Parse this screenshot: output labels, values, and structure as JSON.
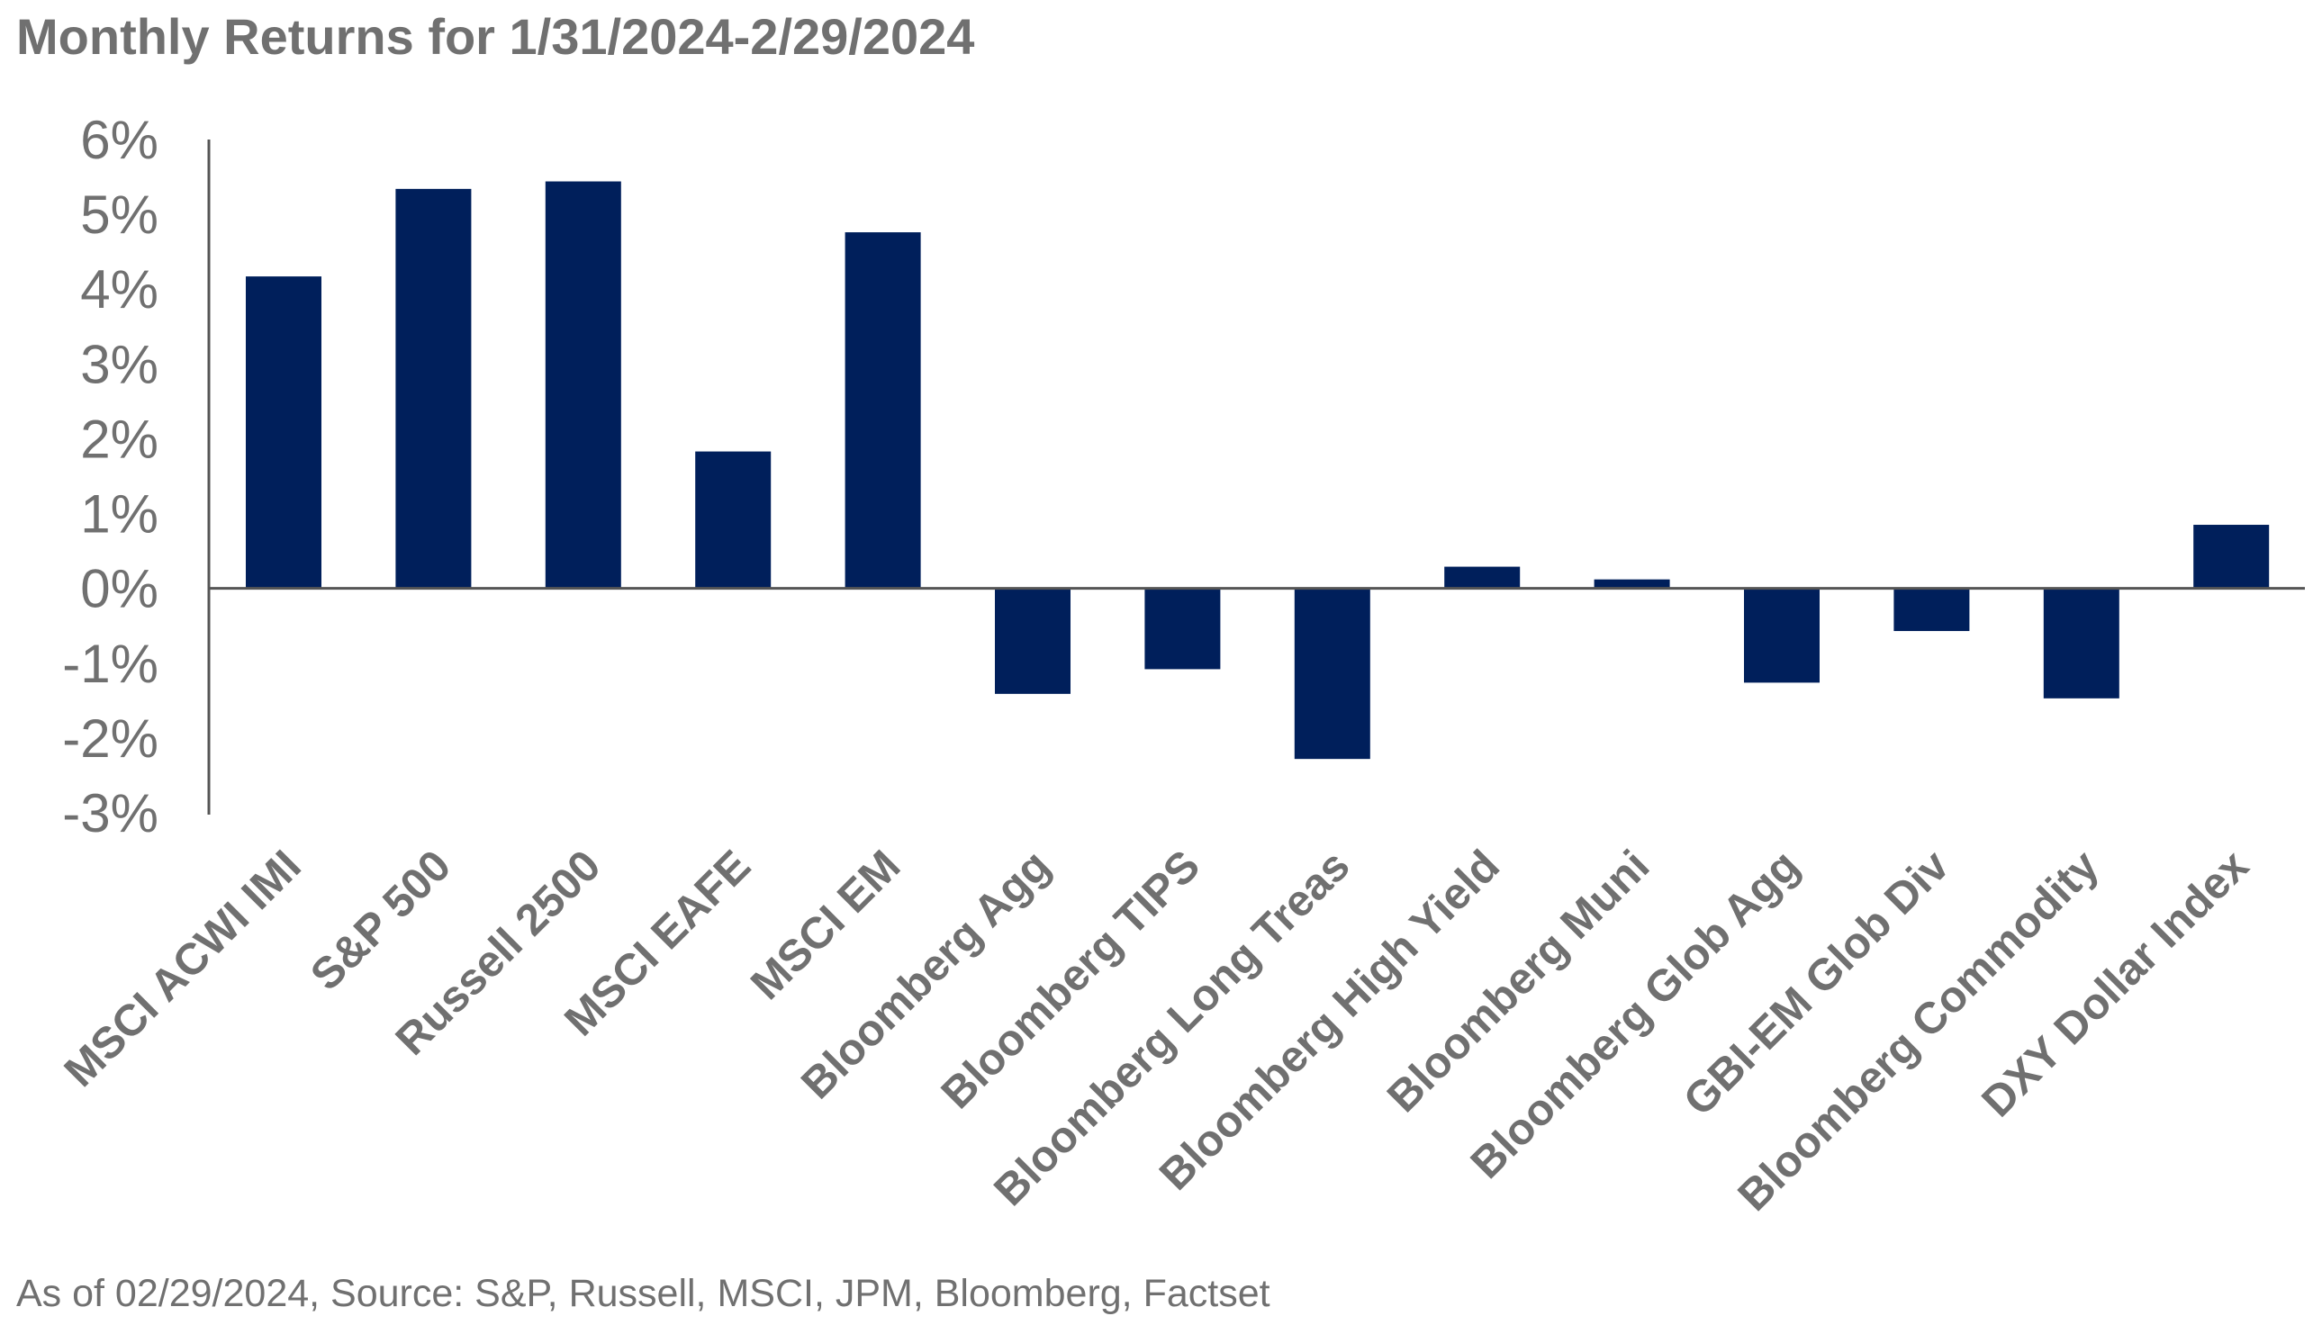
{
  "chart_data": {
    "type": "bar",
    "title": "Monthly Returns for 1/31/2024-2/29/2024",
    "xlabel": "",
    "ylabel": "",
    "categories": [
      "MSCI ACWI IMI",
      "S&P 500",
      "Russell 2500",
      "MSCI EAFE",
      "MSCI EM",
      "Bloomberg Agg",
      "Bloomberg TIPS",
      "Bloomberg Long Treas",
      "Bloomberg High Yield",
      "Bloomberg Muni",
      "Bloomberg Glob Agg",
      "GBI-EM Glob Div",
      "Bloomberg Commodity",
      "DXY Dollar Index"
    ],
    "values": [
      4.17,
      5.34,
      5.44,
      1.83,
      4.76,
      -1.41,
      -1.08,
      -2.28,
      0.29,
      0.12,
      -1.26,
      -0.57,
      -1.47,
      0.85
    ],
    "ylim": [
      -3,
      6
    ],
    "yticks": [
      6,
      5,
      4,
      3,
      2,
      1,
      0,
      -1,
      -2,
      -3
    ],
    "ytick_labels": [
      "6%",
      "5%",
      "4%",
      "3%",
      "2%",
      "1%",
      "0%",
      "-1%",
      "-2%",
      "-3%"
    ],
    "bar_color": "#001F5B",
    "grid": false,
    "legend": "none"
  },
  "footnote": "As of 02/29/2024, Source: S&P, Russell, MSCI, JPM, Bloomberg, Factset"
}
